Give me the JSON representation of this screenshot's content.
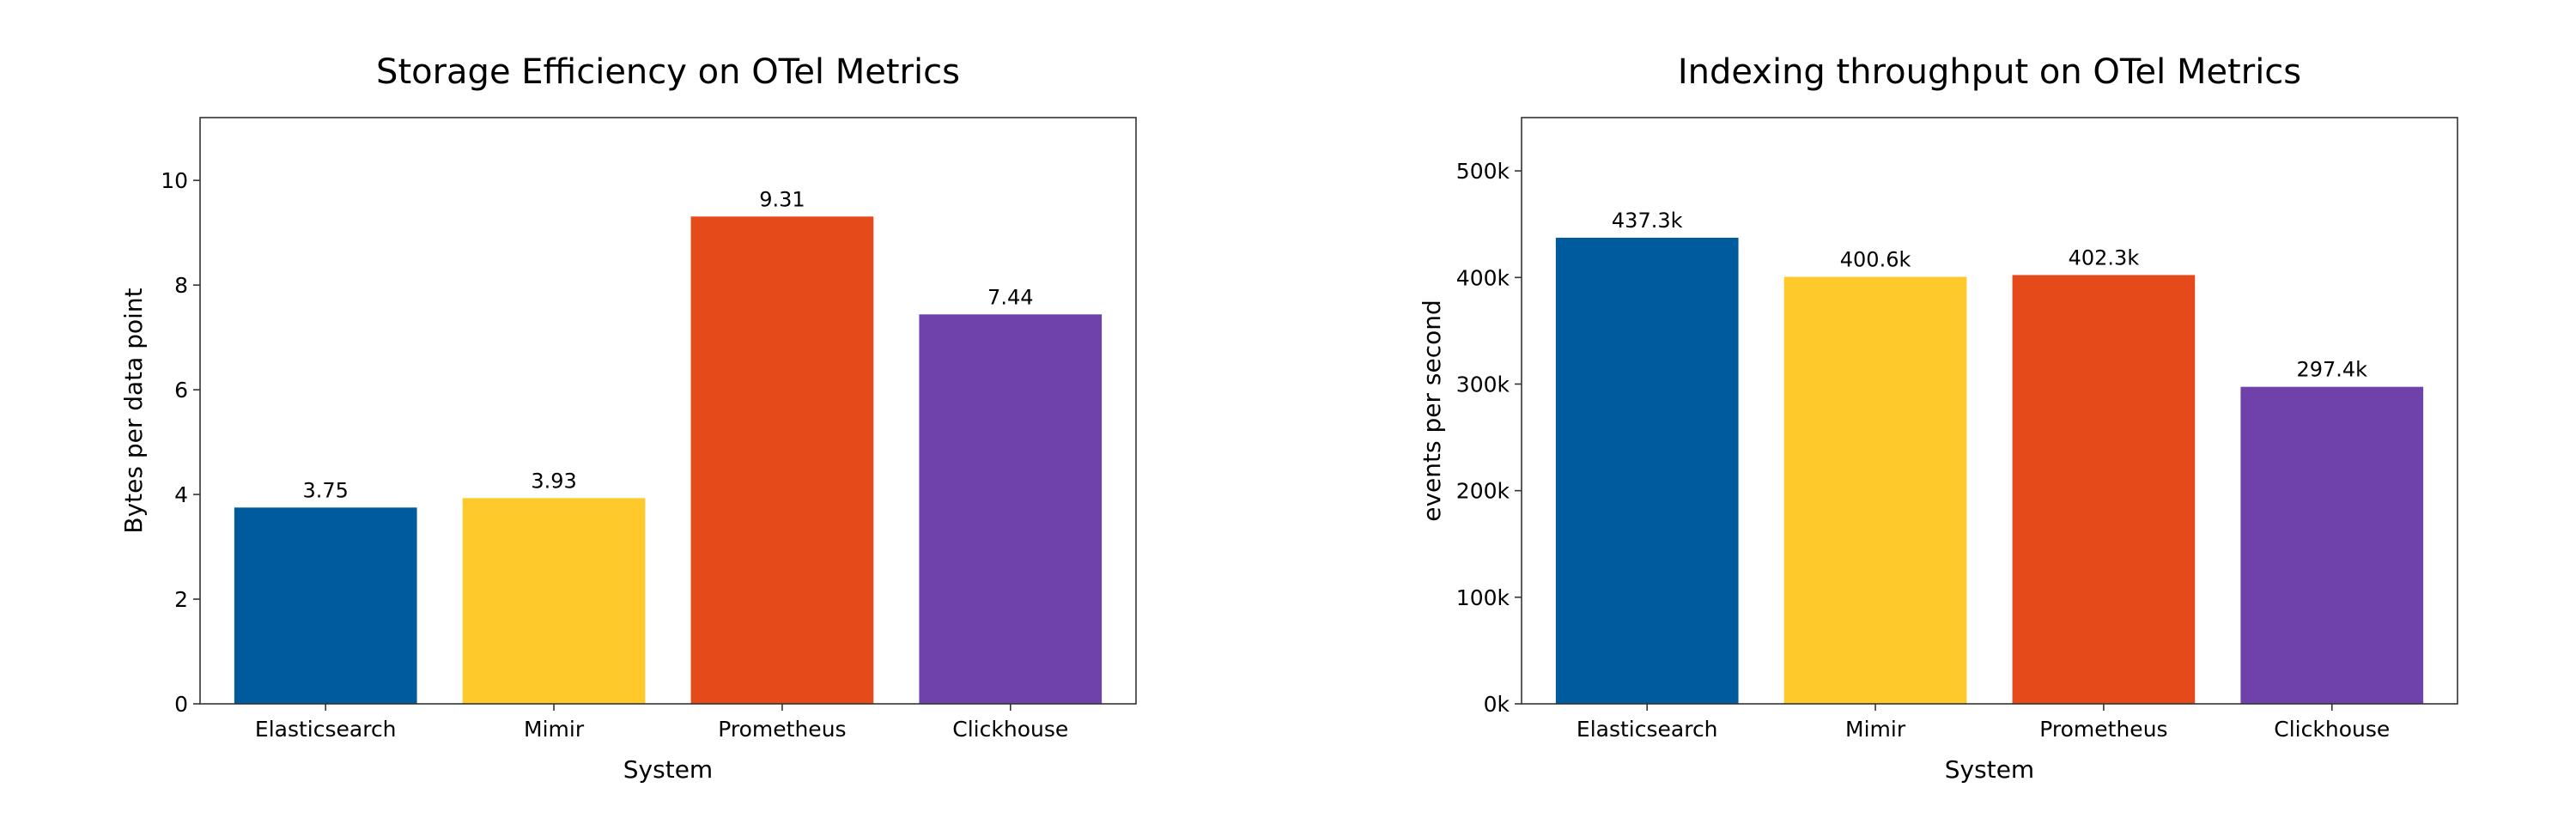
{
  "chart_data": [
    {
      "type": "bar",
      "title": "Storage Efficiency on OTel Metrics",
      "xlabel": "System",
      "ylabel": "Bytes per data point",
      "categories": [
        "Elasticsearch",
        "Mimir",
        "Prometheus",
        "Clickhouse"
      ],
      "values": [
        3.75,
        3.93,
        9.31,
        7.44
      ],
      "value_labels": [
        "3.75",
        "3.93",
        "9.31",
        "7.44"
      ],
      "colors": [
        "#005a9e",
        "#fec92a",
        "#e54b1a",
        "#6f41ab"
      ],
      "ylim": [
        0,
        11.2
      ],
      "yticks": [
        0,
        2,
        4,
        6,
        8,
        10
      ],
      "ytick_labels": [
        "0",
        "2",
        "4",
        "6",
        "8",
        "10"
      ],
      "grid": false,
      "legend": "none"
    },
    {
      "type": "bar",
      "title": "Indexing throughput on OTel Metrics",
      "xlabel": "System",
      "ylabel": "events per second",
      "categories": [
        "Elasticsearch",
        "Mimir",
        "Prometheus",
        "Clickhouse"
      ],
      "values": [
        437300,
        400600,
        402300,
        297400
      ],
      "value_labels": [
        "437.3k",
        "400.6k",
        "402.3k",
        "297.4k"
      ],
      "colors": [
        "#005a9e",
        "#fec92a",
        "#e54b1a",
        "#6f41ab"
      ],
      "ylim": [
        0,
        550000
      ],
      "yticks": [
        0,
        100000,
        200000,
        300000,
        400000,
        500000
      ],
      "ytick_labels": [
        "0k",
        "100k",
        "200k",
        "300k",
        "400k",
        "500k"
      ],
      "grid": false,
      "legend": "none"
    }
  ]
}
